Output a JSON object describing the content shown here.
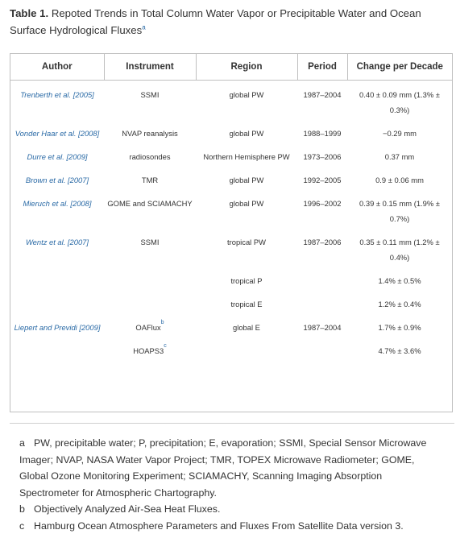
{
  "caption": {
    "label": "Table 1.",
    "text": "Repoted Trends in Total Column Water Vapor or Precipitable Water and Ocean Surface Hydrological Fluxes",
    "footnote_mark": "a"
  },
  "table": {
    "headers": [
      "Author",
      "Instrument",
      "Region",
      "Period",
      "Change per Decade"
    ],
    "rows": [
      {
        "author_a": "Trenberth ",
        "author_etal": "et al.",
        "author_b": " [2005]",
        "instrument": "SSMI",
        "instrument_mark": "",
        "region": "global PW",
        "period": "1987–2004",
        "change": "0.40 ± 0.09 mm (1.3% ± 0.3%)"
      },
      {
        "author_a": "Vonder Haar ",
        "author_etal": "et al.",
        "author_b": " [2008]",
        "instrument": "NVAP reanalysis",
        "instrument_mark": "",
        "region": "global PW",
        "period": "1988–1999",
        "change": "−0.29 mm"
      },
      {
        "author_a": "Durre ",
        "author_etal": "et al.",
        "author_b": " [2009]",
        "instrument": "radiosondes",
        "instrument_mark": "",
        "region": "Northern Hemisphere PW",
        "period": "1973–2006",
        "change": "0.37 mm"
      },
      {
        "author_a": "Brown ",
        "author_etal": "et al.",
        "author_b": " [2007]",
        "instrument": "TMR",
        "instrument_mark": "",
        "region": "global PW",
        "period": "1992–2005",
        "change": "0.9 ± 0.06 mm"
      },
      {
        "author_a": "Mieruch ",
        "author_etal": "et al.",
        "author_b": " [2008]",
        "instrument": "GOME and SCIAMACHY",
        "instrument_mark": "",
        "region": "global PW",
        "period": "1996–2002",
        "change": "0.39 ± 0.15 mm (1.9% ± 0.7%)"
      },
      {
        "author_a": "Wentz ",
        "author_etal": "et al.",
        "author_b": " [2007]",
        "instrument": "SSMI",
        "instrument_mark": "",
        "region": "tropical PW",
        "period": "1987–2006",
        "change": "0.35 ± 0.11 mm (1.2% ± 0.4%)"
      },
      {
        "author_a": "",
        "author_etal": "",
        "author_b": "",
        "instrument": "",
        "instrument_mark": "",
        "region": "tropical P",
        "period": "",
        "change": "1.4% ± 0.5%"
      },
      {
        "author_a": "",
        "author_etal": "",
        "author_b": "",
        "instrument": "",
        "instrument_mark": "",
        "region": "tropical E",
        "period": "",
        "change": "1.2% ± 0.4%"
      },
      {
        "author_a": "Liepert and Previdi",
        "author_etal": "",
        "author_b": " [2009]",
        "instrument": "OAFlux",
        "instrument_mark": "b",
        "region": "global E",
        "period": "1987–2004",
        "change": "1.7% ± 0.9%"
      },
      {
        "author_a": "",
        "author_etal": "",
        "author_b": "",
        "instrument": "HOAPS3",
        "instrument_mark": "c",
        "region": "",
        "period": "",
        "change": "4.7% ± 3.6%"
      }
    ]
  },
  "notes": [
    {
      "mark": "a",
      "text": "PW, precipitable water; P, precipitation; E, evaporation; SSMI, Special Sensor Microwave Imager; NVAP, NASA Water Vapor Project; TMR, TOPEX Microwave Radiometer; GOME, Global Ozone Monitoring Experiment; SCIAMACHY, Scanning Imaging Absorption Spectrometer for Atmospheric Chartography."
    },
    {
      "mark": "b",
      "text": "Objectively Analyzed Air-Sea Heat Fluxes."
    },
    {
      "mark": "c",
      "text": "Hamburg Ocean Atmosphere Parameters and Fluxes From Satellite Data version 3."
    }
  ]
}
